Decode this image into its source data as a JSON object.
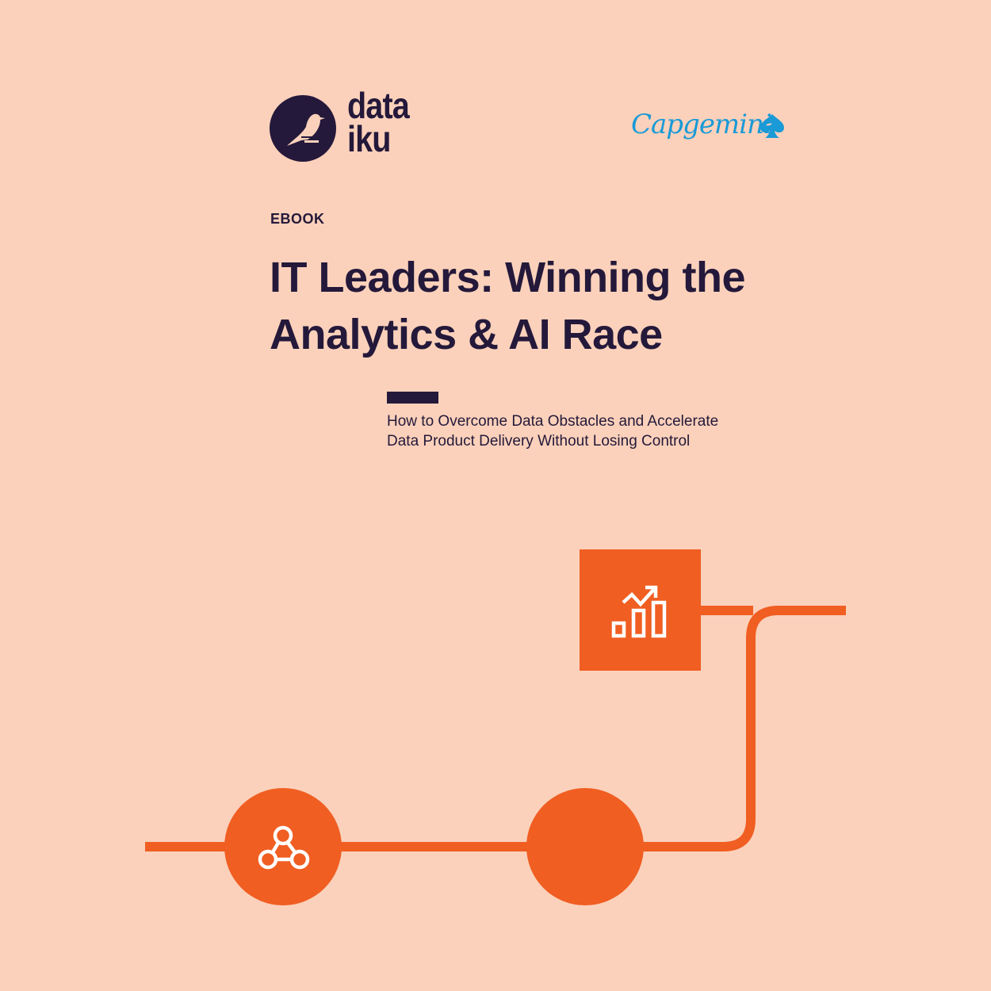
{
  "logos": {
    "dataiku": "data\niku",
    "capgemini": "Capgemini"
  },
  "eyebrow": "EBOOK",
  "title": "IT Leaders: Winning the Analytics & AI Race",
  "subtitle": "How to Overcome Data Obstacles and Accelerate Data Product Delivery Without Losing Control",
  "colors": {
    "background": "#FBD1BB",
    "navy": "#24193A",
    "orange": "#F05E22",
    "capgemini_blue": "#1A9AD6"
  },
  "icons": {
    "chart": "analytics-chart-icon",
    "network": "network-nodes-icon",
    "bird": "dataiku-bird-icon",
    "spade": "capgemini-spade-icon"
  }
}
